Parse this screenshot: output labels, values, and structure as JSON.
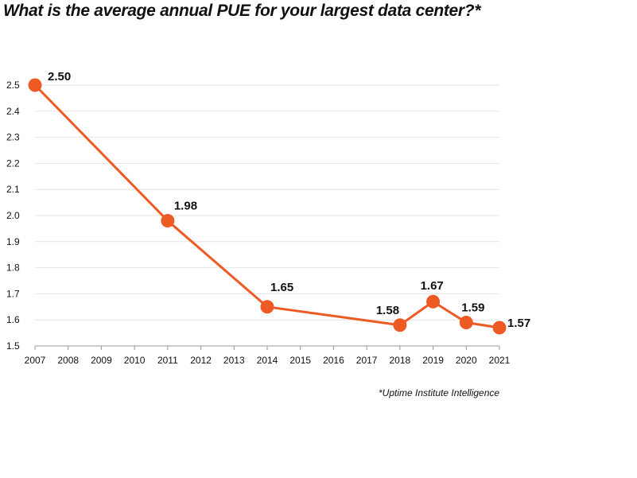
{
  "page_title": "What is the average annual PUE for your largest data center?*",
  "source_note": "*Uptime Institute Intelligence",
  "colors": {
    "series": "#ee5a24",
    "grid": "#e4e4e4",
    "axis": "#999999"
  },
  "chart_data": {
    "type": "line",
    "title": "What is the average annual PUE for your largest data center?*",
    "xlabel": "",
    "ylabel": "",
    "x_ticks": [
      "2007",
      "2008",
      "2009",
      "2010",
      "2011",
      "2012",
      "2013",
      "2014",
      "2015",
      "2016",
      "2017",
      "2018",
      "2019",
      "2020",
      "2021"
    ],
    "y_ticks": [
      "1.5",
      "1.6",
      "1.7",
      "1.8",
      "1.9",
      "2.0",
      "2.1",
      "2.2",
      "2.3",
      "2.4",
      "2.5"
    ],
    "ylim": [
      1.5,
      2.5
    ],
    "xlim": [
      2007,
      2021
    ],
    "grid": true,
    "series": [
      {
        "x": [
          2007,
          2011,
          2014,
          2018,
          2019,
          2020,
          2021
        ],
        "values": [
          2.5,
          1.98,
          1.65,
          1.58,
          1.67,
          1.59,
          1.57
        ],
        "labels": [
          "2.50",
          "1.98",
          "1.65",
          "1.58",
          "1.67",
          "1.59",
          "1.57"
        ]
      }
    ]
  }
}
